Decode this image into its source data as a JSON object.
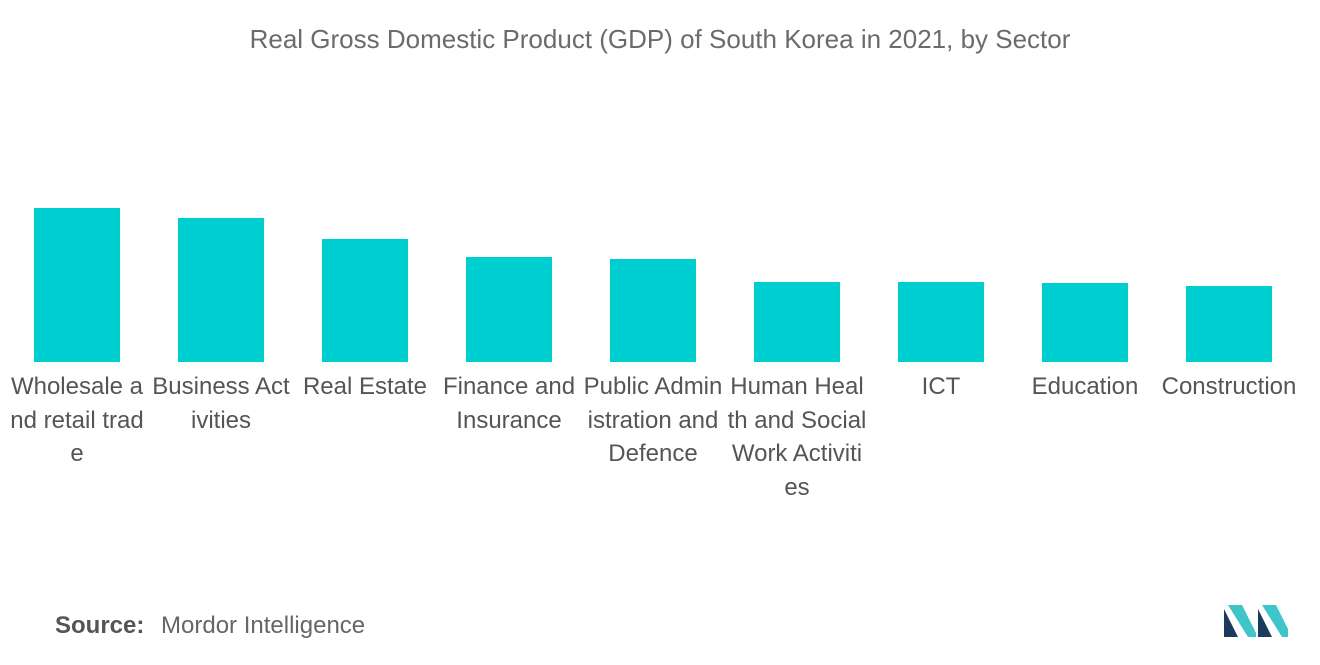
{
  "colors": {
    "bar": "#00cfd1",
    "logo_dark": "#1b3a5c",
    "logo_light": "#3dc5c9"
  },
  "chart_data": {
    "type": "bar",
    "title": "Real Gross Domestic Product (GDP) of South Korea in 2021, by Sector",
    "xlabel": "",
    "ylabel": "",
    "categories": [
      "Wholesale and retail trade",
      "Business Activities",
      "Real Estate",
      "Finance and Insurance",
      "Public Administration and Defence",
      "Human Health and Social Work Activities",
      "ICT",
      "Education",
      "Construction"
    ],
    "values": [
      154,
      144,
      123,
      105,
      103,
      80,
      80,
      79,
      76
    ],
    "ylim": [
      0,
      200
    ],
    "grid": false,
    "legend": "none"
  },
  "source": {
    "label": "Source:",
    "text": "Mordor Intelligence"
  },
  "logo": {
    "icon": "mordor-intelligence-logo-icon"
  }
}
